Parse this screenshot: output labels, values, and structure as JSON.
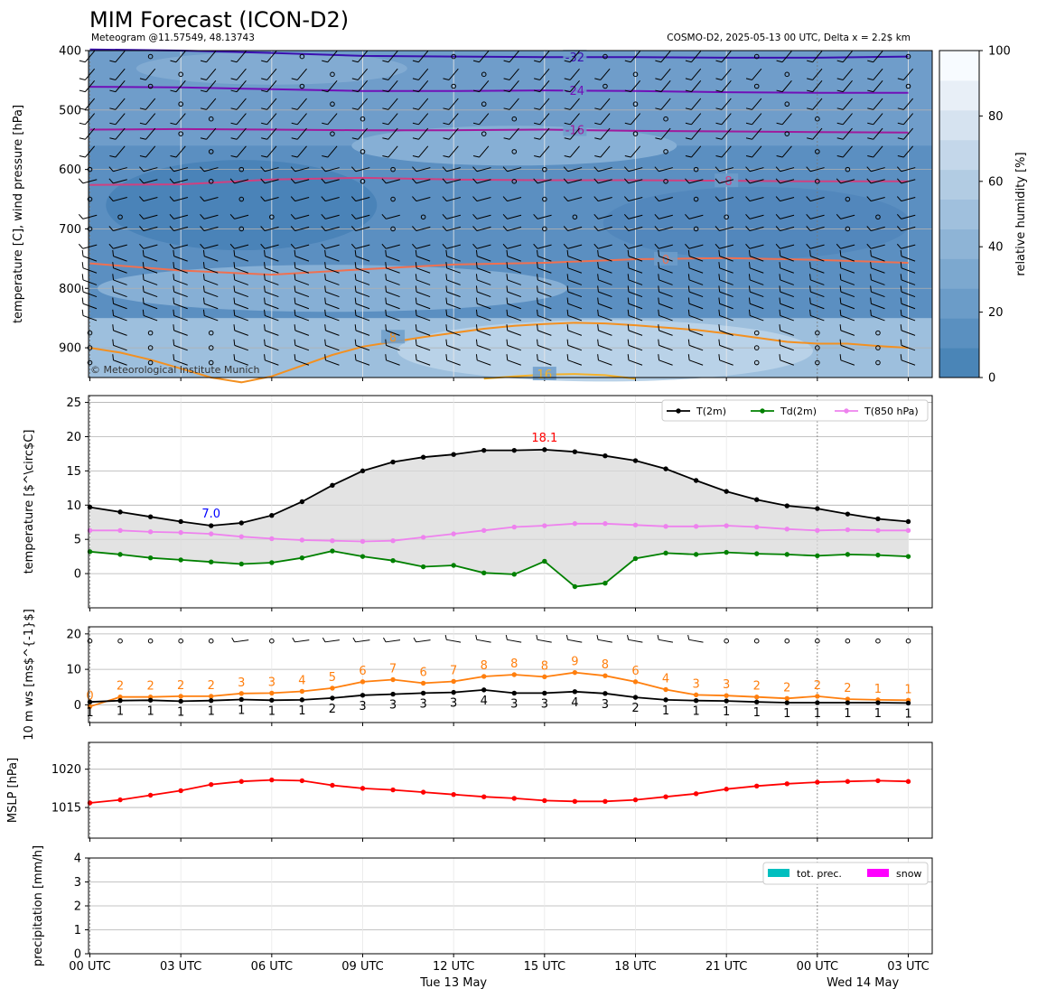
{
  "header": {
    "title": "MIM Forecast (ICON-D2)",
    "subtitle_left": "Meteogram @11.57549, 48.13743",
    "subtitle_right": "COSMO-D2, 2025-05-13 00 UTC, Delta x = 2.2$ km",
    "copyright": "© Meteorological Institute Munich"
  },
  "time_axis": {
    "tick_hours": [
      0,
      3,
      6,
      9,
      12,
      15,
      18,
      21,
      24,
      27
    ],
    "tick_labels": [
      "00 UTC",
      "03 UTC",
      "06 UTC",
      "09 UTC",
      "12 UTC",
      "15 UTC",
      "18 UTC",
      "21 UTC",
      "00 UTC",
      "03 UTC"
    ],
    "date_labels": [
      {
        "hour": 12,
        "text": "Tue 13 May"
      },
      {
        "hour": 25.5,
        "text": "Wed 14 May"
      }
    ],
    "xlim": [
      0,
      27
    ]
  },
  "colors": {
    "rh_scale": [
      "#4a85b7",
      "#5a90c0",
      "#6b9cc8",
      "#7ca8cf",
      "#8eb4d6",
      "#a0c0dd",
      "#b2cce3",
      "#c4d7ea",
      "#d6e3f0",
      "#e8eff7",
      "#f7fbff"
    ],
    "t2m": "#000000",
    "td2m": "#008000",
    "t850": "#ee82ee",
    "wind_speed": "#ff7f0e",
    "mslp": "#ff0000",
    "precip": "#00bfbf",
    "snow": "#ff00ff",
    "tmax_label": "#ff0000",
    "tmin_label": "#0000ff"
  },
  "chart_data": [
    {
      "type": "heatmap",
      "name": "upper-air",
      "ylabel": "temperature [C], wind pressure [hPa]",
      "ylim": [
        950,
        400
      ],
      "yticks": [
        400,
        500,
        600,
        700,
        800,
        900
      ],
      "colorbar": {
        "label": "relative humidity [%]",
        "ticks": [
          0,
          20,
          40,
          60,
          80,
          100
        ]
      },
      "isotherms": [
        {
          "label": "-32",
          "color": "#3b0fb0",
          "label_hour": 16,
          "hours": [
            0,
            3,
            6,
            9,
            12,
            15,
            18,
            21,
            24,
            27
          ],
          "p": [
            398,
            400,
            404,
            409,
            410,
            411,
            411,
            412,
            412,
            410
          ]
        },
        {
          "label": "-24",
          "color": "#7010b8",
          "label_hour": 16,
          "hours": [
            0,
            3,
            6,
            9,
            12,
            15,
            18,
            21,
            24,
            27
          ],
          "p": [
            461,
            462,
            465,
            468,
            468,
            467,
            468,
            470,
            471,
            471
          ]
        },
        {
          "label": "-16",
          "color": "#a01a9c",
          "label_hour": 16,
          "hours": [
            0,
            3,
            6,
            9,
            12,
            15,
            18,
            21,
            24,
            27
          ],
          "p": [
            533,
            532,
            533,
            534,
            534,
            533,
            535,
            536,
            537,
            538
          ]
        },
        {
          "label": "-8",
          "color": "#d04080",
          "label_hour": 21,
          "hours": [
            0,
            3,
            6,
            9,
            12,
            15,
            18,
            21,
            24,
            27
          ],
          "p": [
            626,
            625,
            617,
            614,
            617,
            618,
            618,
            619,
            620,
            620
          ]
        },
        {
          "label": "0",
          "color": "#f07050",
          "label_hour": 19,
          "hours": [
            0,
            3,
            6,
            9,
            12,
            15,
            18,
            21,
            24,
            27
          ],
          "p": [
            758,
            770,
            777,
            768,
            760,
            757,
            751,
            749,
            752,
            757
          ]
        },
        {
          "label": "8",
          "color": "#f39020",
          "label_hour": 10,
          "hours": [
            0,
            1,
            2,
            3,
            4,
            5,
            6,
            7,
            8,
            9,
            10,
            11,
            12,
            13,
            14,
            15,
            16,
            17,
            18,
            19,
            20,
            21,
            22,
            23,
            24,
            25,
            26,
            27
          ],
          "p": [
            900,
            908,
            920,
            935,
            950,
            958,
            948,
            930,
            912,
            898,
            890,
            882,
            875,
            868,
            863,
            860,
            858,
            859,
            862,
            866,
            870,
            876,
            883,
            890,
            893,
            893,
            897,
            900
          ]
        },
        {
          "label": "16",
          "color": "#f5b22a",
          "label_hour": 15,
          "hours": [
            13,
            14,
            15,
            16,
            17,
            18
          ],
          "p": [
            952,
            948,
            945,
            944,
            946,
            952
          ]
        }
      ]
    },
    {
      "type": "line",
      "name": "temperature",
      "ylabel": "temperature [$^\\circ$C]",
      "ylim": [
        -5,
        26
      ],
      "yticks": [
        0,
        5,
        10,
        15,
        20,
        25
      ],
      "x": [
        0,
        1,
        2,
        3,
        4,
        5,
        6,
        7,
        8,
        9,
        10,
        11,
        12,
        13,
        14,
        15,
        16,
        17,
        18,
        19,
        20,
        21,
        22,
        23,
        24,
        25,
        26,
        27
      ],
      "series": [
        {
          "name": "T(2m)",
          "values": [
            9.7,
            9.0,
            8.3,
            7.6,
            7.0,
            7.4,
            8.5,
            10.5,
            12.9,
            15.0,
            16.3,
            17.0,
            17.4,
            18.0,
            18.0,
            18.1,
            17.8,
            17.2,
            16.5,
            15.3,
            13.6,
            12.0,
            10.8,
            9.9,
            9.5,
            8.7,
            8.0,
            7.6
          ]
        },
        {
          "name": "Td(2m)",
          "values": [
            3.2,
            2.8,
            2.3,
            2.0,
            1.7,
            1.4,
            1.6,
            2.3,
            3.3,
            2.5,
            1.9,
            1.0,
            1.2,
            0.1,
            -0.1,
            1.8,
            -1.9,
            -1.4,
            2.2,
            3.0,
            2.8,
            3.1,
            2.9,
            2.8,
            2.6,
            2.8,
            2.7,
            2.5
          ]
        },
        {
          "name": "T(850 hPa)",
          "values": [
            6.3,
            6.3,
            6.1,
            6.0,
            5.8,
            5.4,
            5.1,
            4.9,
            4.8,
            4.7,
            4.8,
            5.3,
            5.8,
            6.3,
            6.8,
            7.0,
            7.3,
            7.3,
            7.1,
            6.9,
            6.9,
            7.0,
            6.8,
            6.5,
            6.3,
            6.4,
            6.3,
            6.3
          ]
        }
      ],
      "annotations": [
        {
          "text": "18.1",
          "hour": 15,
          "value": 18.1,
          "kind": "max"
        },
        {
          "text": "7.0",
          "hour": 4,
          "value": 7.0,
          "kind": "min"
        }
      ]
    },
    {
      "type": "line",
      "name": "wind",
      "ylabel": "10 m ws [ms$^{-1}$]",
      "ylim": [
        -5,
        22
      ],
      "yticks": [
        0,
        10,
        20
      ],
      "x": [
        0,
        1,
        2,
        3,
        4,
        5,
        6,
        7,
        8,
        9,
        10,
        11,
        12,
        13,
        14,
        15,
        16,
        17,
        18,
        19,
        20,
        21,
        22,
        23,
        24,
        25,
        26,
        27
      ],
      "series": [
        {
          "name": "mean",
          "values": [
            0.8,
            1.2,
            1.3,
            1.0,
            1.2,
            1.5,
            1.3,
            1.4,
            1.9,
            2.7,
            3.0,
            3.3,
            3.5,
            4.2,
            3.3,
            3.3,
            3.7,
            3.2,
            2.1,
            1.4,
            1.2,
            1.1,
            0.8,
            0.6,
            0.6,
            0.6,
            0.6,
            0.5
          ]
        },
        {
          "name": "gust",
          "values": [
            -0.5,
            2.2,
            2.2,
            2.4,
            2.4,
            3.2,
            3.3,
            3.8,
            4.7,
            6.5,
            7.1,
            6.1,
            6.6,
            8.0,
            8.5,
            7.9,
            9.1,
            8.2,
            6.5,
            4.3,
            2.8,
            2.6,
            2.2,
            1.8,
            2.4,
            1.6,
            1.4,
            1.3
          ]
        }
      ],
      "gust_labels": [
        "0",
        "2",
        "2",
        "2",
        "2",
        "3",
        "3",
        "4",
        "5",
        "6",
        "7",
        "6",
        "7",
        "8",
        "8",
        "8",
        "9",
        "8",
        "6",
        "4",
        "3",
        "3",
        "2",
        "2",
        "2",
        "2",
        "1",
        "1"
      ],
      "mean_labels": [
        "1",
        "1",
        "1",
        "1",
        "1",
        "1",
        "1",
        "1",
        "2",
        "3",
        "3",
        "3",
        "3",
        "4",
        "3",
        "3",
        "4",
        "3",
        "2",
        "1",
        "1",
        "1",
        "1",
        "1",
        "1",
        "1",
        "1",
        "1"
      ]
    },
    {
      "type": "line",
      "name": "mslp",
      "ylabel": "MSLP [hPa]",
      "ylim": [
        1011,
        1023.5
      ],
      "yticks": [
        1015,
        1020
      ],
      "x": [
        0,
        1,
        2,
        3,
        4,
        5,
        6,
        7,
        8,
        9,
        10,
        11,
        12,
        13,
        14,
        15,
        16,
        17,
        18,
        19,
        20,
        21,
        22,
        23,
        24,
        25,
        26,
        27
      ],
      "series": [
        {
          "name": "MSLP",
          "values": [
            1015.6,
            1016.0,
            1016.6,
            1017.2,
            1018.0,
            1018.4,
            1018.6,
            1018.5,
            1017.9,
            1017.5,
            1017.3,
            1017.0,
            1016.7,
            1016.4,
            1016.2,
            1015.9,
            1015.8,
            1015.8,
            1016.0,
            1016.4,
            1016.8,
            1017.4,
            1017.8,
            1018.1,
            1018.3,
            1018.4,
            1018.5,
            1018.4
          ]
        }
      ]
    },
    {
      "type": "bar",
      "name": "precipitation",
      "ylabel": "precipitation [mm/h]",
      "ylim": [
        0,
        4
      ],
      "yticks": [
        0,
        1,
        2,
        3,
        4
      ],
      "x": [
        0,
        1,
        2,
        3,
        4,
        5,
        6,
        7,
        8,
        9,
        10,
        11,
        12,
        13,
        14,
        15,
        16,
        17,
        18,
        19,
        20,
        21,
        22,
        23,
        24,
        25,
        26,
        27
      ],
      "series": [
        {
          "name": "tot. prec.",
          "values": [
            0,
            0,
            0,
            0,
            0,
            0,
            0,
            0,
            0,
            0,
            0,
            0,
            0,
            0,
            0,
            0,
            0,
            0,
            0,
            0,
            0,
            0,
            0,
            0,
            0,
            0,
            0,
            0
          ]
        },
        {
          "name": "snow",
          "values": [
            0,
            0,
            0,
            0,
            0,
            0,
            0,
            0,
            0,
            0,
            0,
            0,
            0,
            0,
            0,
            0,
            0,
            0,
            0,
            0,
            0,
            0,
            0,
            0,
            0,
            0,
            0,
            0
          ]
        }
      ]
    }
  ]
}
